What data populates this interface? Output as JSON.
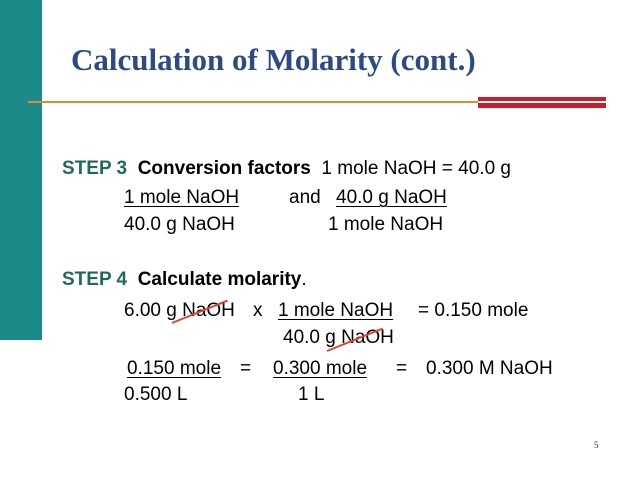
{
  "slide": {
    "title": "Calculation of Molarity (cont.)",
    "page_number": "5"
  },
  "step3": {
    "label": "STEP 3",
    "heading": "Conversion factors",
    "equivalence": "1 mole NaOH = 40.0 g",
    "factor1_numerator": "1 mole NaOH",
    "conjunction": "and",
    "factor2_numerator": "40.0 g NaOH",
    "factor1_denominator": "40.0 g NaOH",
    "factor2_denominator": "1 mole NaOH"
  },
  "step4": {
    "label": "STEP 4",
    "heading": "Calculate molarity",
    "heading_end": ".",
    "given": "6.00 g NaOH",
    "times": "x",
    "factor_numerator": "1 mole NaOH",
    "result": "= 0.150 mole",
    "factor_denominator": "40.0 g NaOH",
    "frac1_numerator": "0.150 mole",
    "eq1": "=",
    "frac2_numerator": "0.300 mole",
    "eq2": "=",
    "answer": "0.300 M NaOH",
    "frac1_denominator": "0.500 L",
    "frac2_denominator": "1 L"
  },
  "colors": {
    "sidebar": "#1d8a8a",
    "title": "#2d4a87",
    "step_label": "#1f6b5a",
    "accent_red": "#c81f2a",
    "accent_orange": "#e08a2e",
    "cancel_mark": "#e0452e"
  }
}
